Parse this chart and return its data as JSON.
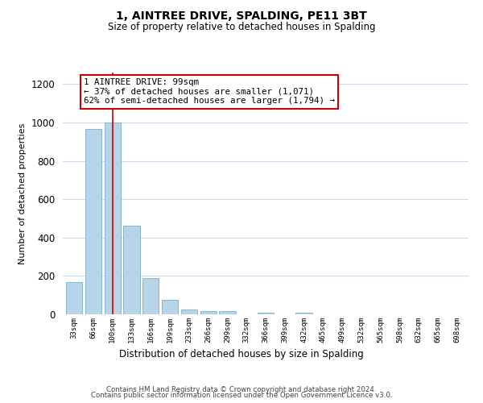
{
  "title": "1, AINTREE DRIVE, SPALDING, PE11 3BT",
  "subtitle": "Size of property relative to detached houses in Spalding",
  "xlabel": "Distribution of detached houses by size in Spalding",
  "ylabel": "Number of detached properties",
  "categories": [
    "33sqm",
    "66sqm",
    "100sqm",
    "133sqm",
    "166sqm",
    "199sqm",
    "233sqm",
    "266sqm",
    "299sqm",
    "332sqm",
    "366sqm",
    "399sqm",
    "432sqm",
    "465sqm",
    "499sqm",
    "532sqm",
    "565sqm",
    "598sqm",
    "632sqm",
    "665sqm",
    "698sqm"
  ],
  "values": [
    170,
    965,
    1000,
    463,
    187,
    75,
    25,
    18,
    18,
    0,
    10,
    0,
    10,
    0,
    0,
    0,
    0,
    0,
    0,
    0,
    0
  ],
  "bar_color": "#b8d4e8",
  "bar_edge_color": "#7aaec8",
  "vline_x": 2,
  "vline_color": "#cc0000",
  "annotation_title": "1 AINTREE DRIVE: 99sqm",
  "annotation_line1": "← 37% of detached houses are smaller (1,071)",
  "annotation_line2": "62% of semi-detached houses are larger (1,794) →",
  "annotation_box_color": "#ffffff",
  "annotation_box_edge": "#cc0000",
  "ylim": [
    0,
    1260
  ],
  "yticks": [
    0,
    200,
    400,
    600,
    800,
    1000,
    1200
  ],
  "footer1": "Contains HM Land Registry data © Crown copyright and database right 2024.",
  "footer2": "Contains public sector information licensed under the Open Government Licence v3.0.",
  "background_color": "#ffffff",
  "grid_color": "#c8d8e8"
}
